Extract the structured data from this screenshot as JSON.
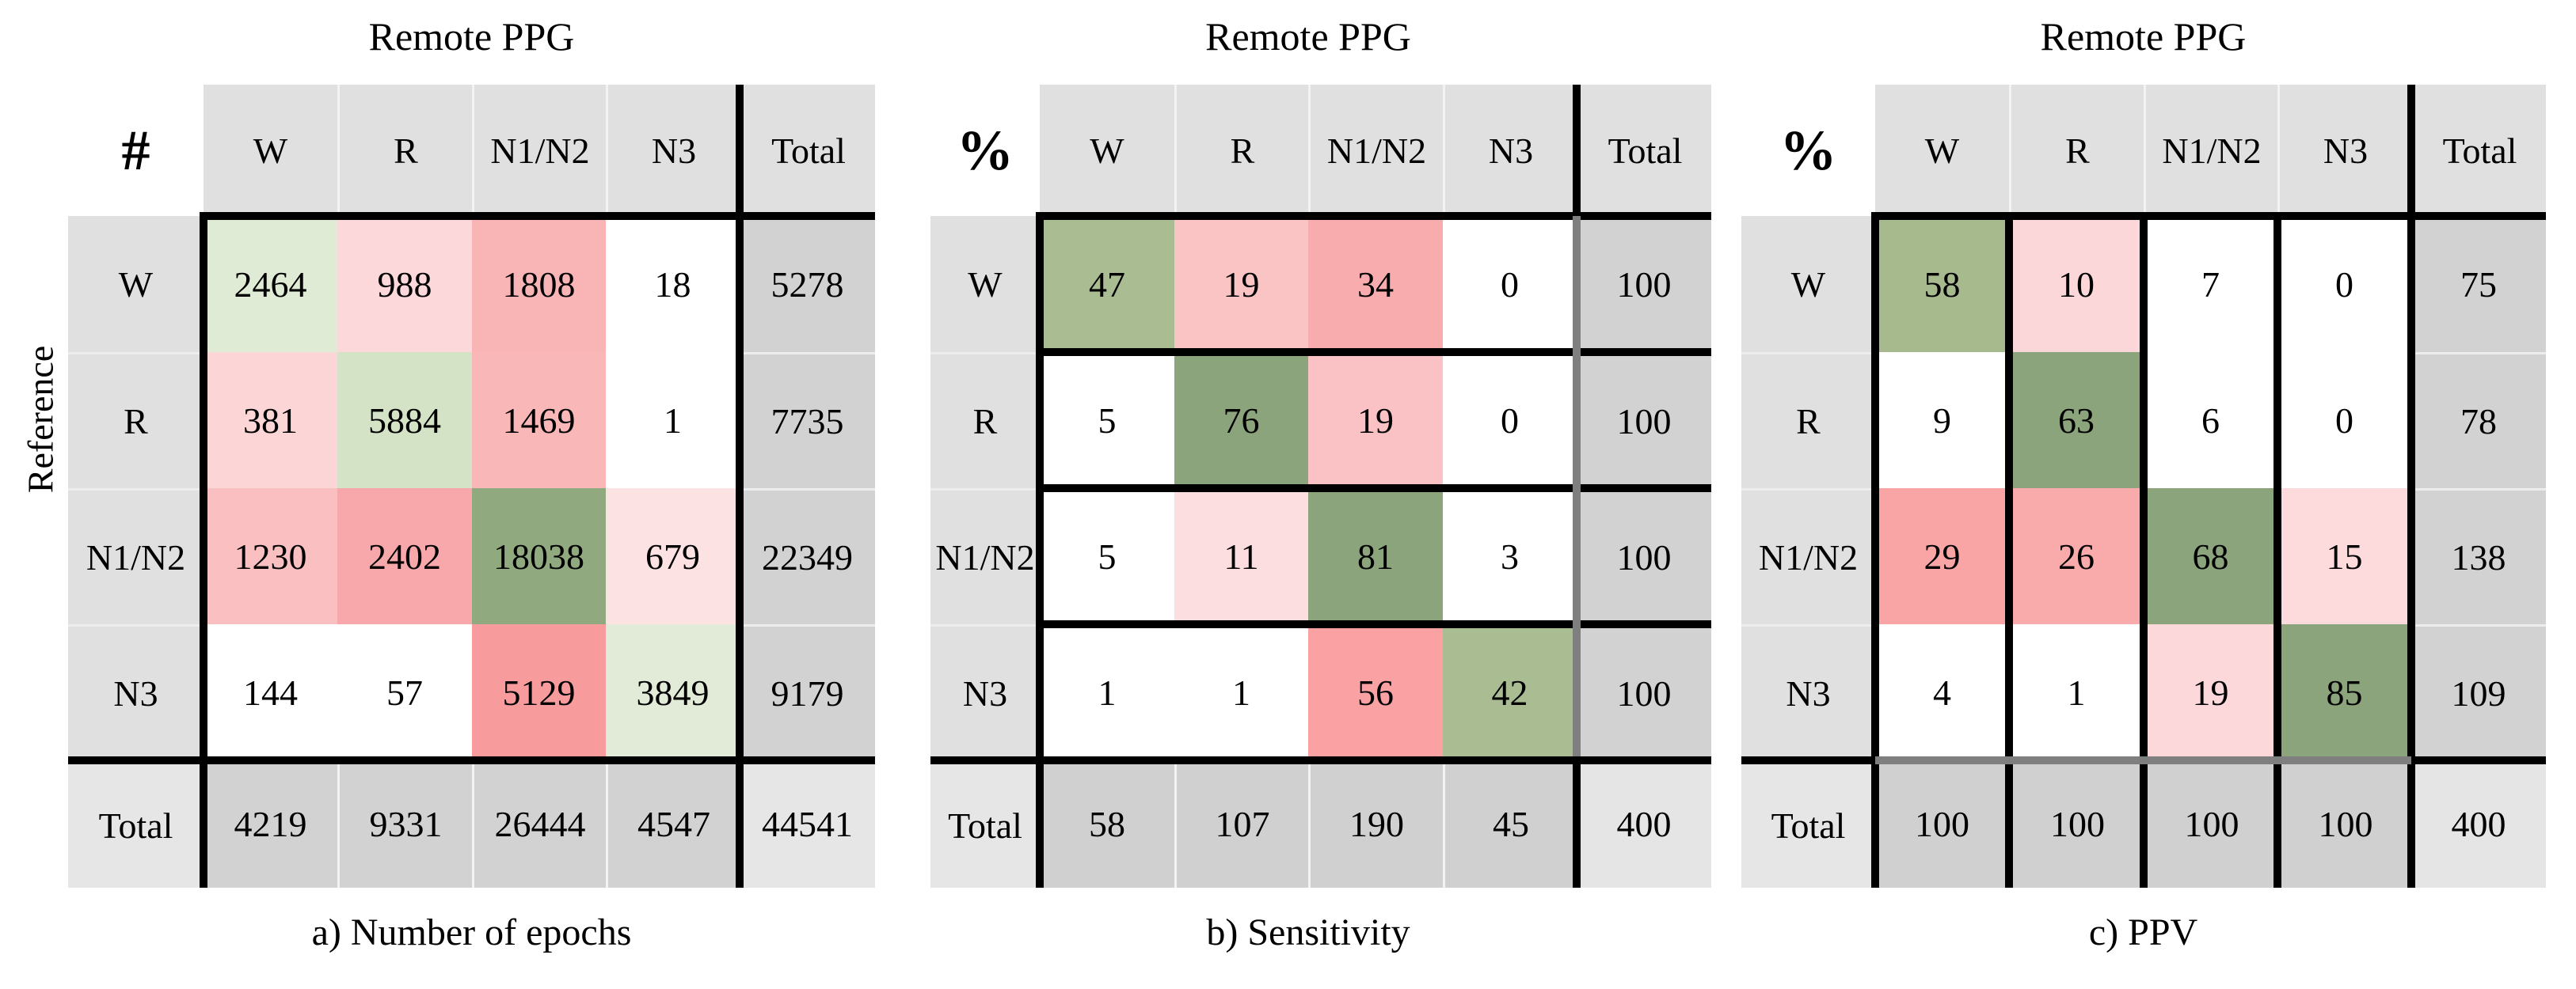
{
  "figure": {
    "reference_label": "Reference",
    "accent_colors": {
      "good_green": "#8ca47b",
      "bad_red": "#f9a1a3",
      "header_gray": "#e0e0e0",
      "total_gray": "#d2d2d3",
      "line_black": "#000000",
      "line_gray": "#7f7f7f"
    },
    "tables": [
      {
        "corner_symbol": "#",
        "title": "Remote PPG",
        "caption": "a) Number of epochs",
        "columns": [
          "W",
          "R",
          "N1/N2",
          "N3",
          "Total"
        ],
        "rows": [
          {
            "label": "W",
            "cells": [
              {
                "v": "2464",
                "bg": "#e0ebd5"
              },
              {
                "v": "988",
                "bg": "#fcd8da"
              },
              {
                "v": "1808",
                "bg": "#f9b4b6"
              },
              {
                "v": "18",
                "bg": "#ffffff"
              },
              {
                "v": "5278",
                "bg": "#d2d2d3"
              }
            ]
          },
          {
            "label": "R",
            "cells": [
              {
                "v": "381",
                "bg": "#fcd5d7"
              },
              {
                "v": "5884",
                "bg": "#d4e3c5"
              },
              {
                "v": "1469",
                "bg": "#f9b7b8"
              },
              {
                "v": "1",
                "bg": "#ffffff"
              },
              {
                "v": "7735",
                "bg": "#d2d2d3"
              }
            ]
          },
          {
            "label": "N1/N2",
            "cells": [
              {
                "v": "1230",
                "bg": "#f9bfc1"
              },
              {
                "v": "2402",
                "bg": "#f8a8aa"
              },
              {
                "v": "18038",
                "bg": "#90a97e"
              },
              {
                "v": "679",
                "bg": "#fde2e3"
              },
              {
                "v": "22349",
                "bg": "#d2d2d3"
              }
            ]
          },
          {
            "label": "N3",
            "cells": [
              {
                "v": "144",
                "bg": "#ffffff"
              },
              {
                "v": "57",
                "bg": "#ffffff"
              },
              {
                "v": "5129",
                "bg": "#f89b9d"
              },
              {
                "v": "3849",
                "bg": "#e1ebd7"
              },
              {
                "v": "9179",
                "bg": "#d2d2d3"
              }
            ]
          },
          {
            "label": "Total",
            "cells": [
              {
                "v": "4219",
                "bg": "#d2d2d3"
              },
              {
                "v": "9331",
                "bg": "#d2d2d3"
              },
              {
                "v": "26444",
                "bg": "#d2d2d3"
              },
              {
                "v": "4547",
                "bg": "#d2d2d3"
              },
              {
                "v": "44541",
                "bg": "#e6e6e6"
              }
            ]
          }
        ]
      },
      {
        "corner_symbol": "%",
        "title": "Remote PPG",
        "caption": "b) Sensitivity",
        "columns": [
          "W",
          "R",
          "N1/N2",
          "N3",
          "Total"
        ],
        "rows": [
          {
            "label": "W",
            "cells": [
              {
                "v": "47",
                "bg": "#a9bc92"
              },
              {
                "v": "19",
                "bg": "#fac3c4"
              },
              {
                "v": "34",
                "bg": "#f9acae"
              },
              {
                "v": "0",
                "bg": "#ffffff"
              },
              {
                "v": "100",
                "bg": "#d2d2d3"
              }
            ]
          },
          {
            "label": "R",
            "cells": [
              {
                "v": "5",
                "bg": "#ffffff"
              },
              {
                "v": "76",
                "bg": "#8ca47b"
              },
              {
                "v": "19",
                "bg": "#fac2c4"
              },
              {
                "v": "0",
                "bg": "#ffffff"
              },
              {
                "v": "100",
                "bg": "#d2d2d3"
              }
            ]
          },
          {
            "label": "N1/N2",
            "cells": [
              {
                "v": "5",
                "bg": "#ffffff"
              },
              {
                "v": "11",
                "bg": "#fcdde0"
              },
              {
                "v": "81",
                "bg": "#8ca47b"
              },
              {
                "v": "3",
                "bg": "#ffffff"
              },
              {
                "v": "100",
                "bg": "#d2d2d3"
              }
            ]
          },
          {
            "label": "N3",
            "cells": [
              {
                "v": "1",
                "bg": "#ffffff"
              },
              {
                "v": "1",
                "bg": "#ffffff"
              },
              {
                "v": "56",
                "bg": "#f9a1a3"
              },
              {
                "v": "42",
                "bg": "#a9bc92"
              },
              {
                "v": "100",
                "bg": "#d2d2d3"
              }
            ]
          },
          {
            "label": "Total",
            "cells": [
              {
                "v": "58",
                "bg": "#d0d0d1"
              },
              {
                "v": "107",
                "bg": "#d0d0d1"
              },
              {
                "v": "190",
                "bg": "#d0d0d1"
              },
              {
                "v": "45",
                "bg": "#d0d0d1"
              },
              {
                "v": "400",
                "bg": "#e5e5e5"
              }
            ]
          }
        ]
      },
      {
        "corner_symbol": "%",
        "title": "Remote PPG",
        "caption": "c) PPV",
        "columns": [
          "W",
          "R",
          "N1/N2",
          "N3",
          "Total"
        ],
        "rows": [
          {
            "label": "W",
            "cells": [
              {
                "v": "58",
                "bg": "#a7ba8e"
              },
              {
                "v": "10",
                "bg": "#fcd7d9"
              },
              {
                "v": "7",
                "bg": "#ffffff"
              },
              {
                "v": "0",
                "bg": "#ffffff"
              },
              {
                "v": "75",
                "bg": "#d2d2d3"
              }
            ]
          },
          {
            "label": "R",
            "cells": [
              {
                "v": "9",
                "bg": "#ffffff"
              },
              {
                "v": "63",
                "bg": "#8ca47b"
              },
              {
                "v": "6",
                "bg": "#ffffff"
              },
              {
                "v": "0",
                "bg": "#ffffff"
              },
              {
                "v": "78",
                "bg": "#d2d2d3"
              }
            ]
          },
          {
            "label": "N1/N2",
            "cells": [
              {
                "v": "29",
                "bg": "#f9a5a6"
              },
              {
                "v": "26",
                "bg": "#f9aaab"
              },
              {
                "v": "68",
                "bg": "#8ca47b"
              },
              {
                "v": "15",
                "bg": "#fddbdd"
              },
              {
                "v": "138",
                "bg": "#d2d2d3"
              }
            ]
          },
          {
            "label": "N3",
            "cells": [
              {
                "v": "4",
                "bg": "#ffffff"
              },
              {
                "v": "1",
                "bg": "#ffffff"
              },
              {
                "v": "19",
                "bg": "#fcd8db"
              },
              {
                "v": "85",
                "bg": "#8ca47b"
              },
              {
                "v": "109",
                "bg": "#d2d2d3"
              }
            ]
          },
          {
            "label": "Total",
            "cells": [
              {
                "v": "100",
                "bg": "#d0d0d1"
              },
              {
                "v": "100",
                "bg": "#d0d0d1"
              },
              {
                "v": "100",
                "bg": "#d0d0d1"
              },
              {
                "v": "100",
                "bg": "#d0d0d1"
              },
              {
                "v": "400",
                "bg": "#e5e5e5"
              }
            ]
          }
        ]
      }
    ]
  },
  "chart_data": [
    {
      "type": "heatmap",
      "title": "Remote PPG",
      "caption": "a) Number of epochs",
      "unit": "count",
      "row_axis": "Reference",
      "col_axis": "Remote PPG",
      "rows": [
        "W",
        "R",
        "N1/N2",
        "N3"
      ],
      "cols": [
        "W",
        "R",
        "N1/N2",
        "N3"
      ],
      "matrix": [
        [
          2464,
          988,
          1808,
          18
        ],
        [
          381,
          5884,
          1469,
          1
        ],
        [
          1230,
          2402,
          18038,
          679
        ],
        [
          144,
          57,
          5129,
          3849
        ]
      ],
      "row_totals": [
        5278,
        7735,
        22349,
        9179
      ],
      "col_totals": [
        4219,
        9331,
        26444,
        4547
      ],
      "grand_total": 44541
    },
    {
      "type": "heatmap",
      "title": "Remote PPG",
      "caption": "b) Sensitivity",
      "unit": "percent",
      "row_axis": "Reference",
      "col_axis": "Remote PPG",
      "rows": [
        "W",
        "R",
        "N1/N2",
        "N3"
      ],
      "cols": [
        "W",
        "R",
        "N1/N2",
        "N3"
      ],
      "matrix": [
        [
          47,
          19,
          34,
          0
        ],
        [
          5,
          76,
          19,
          0
        ],
        [
          5,
          11,
          81,
          3
        ],
        [
          1,
          1,
          56,
          42
        ]
      ],
      "row_totals": [
        100,
        100,
        100,
        100
      ],
      "col_totals": [
        58,
        107,
        190,
        45
      ],
      "grand_total": 400
    },
    {
      "type": "heatmap",
      "title": "Remote PPG",
      "caption": "c) PPV",
      "unit": "percent",
      "row_axis": "Reference",
      "col_axis": "Remote PPG",
      "rows": [
        "W",
        "R",
        "N1/N2",
        "N3"
      ],
      "cols": [
        "W",
        "R",
        "N1/N2",
        "N3"
      ],
      "matrix": [
        [
          58,
          10,
          7,
          0
        ],
        [
          9,
          63,
          6,
          0
        ],
        [
          29,
          26,
          68,
          15
        ],
        [
          4,
          1,
          19,
          85
        ]
      ],
      "row_totals": [
        75,
        78,
        138,
        109
      ],
      "col_totals": [
        100,
        100,
        100,
        100
      ],
      "grand_total": 400
    }
  ]
}
